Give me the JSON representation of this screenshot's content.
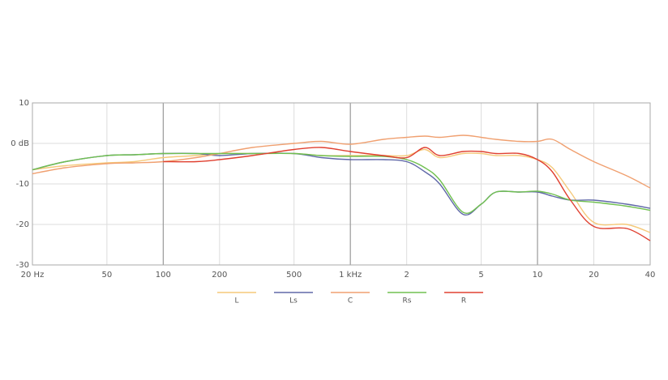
{
  "chart_data": {
    "type": "line",
    "x": [
      20,
      30,
      50,
      70,
      100,
      150,
      200,
      300,
      500,
      700,
      1000,
      1500,
      2000,
      2500,
      3000,
      4000,
      5000,
      6000,
      8000,
      10000,
      12000,
      15000,
      20000,
      30000,
      40000
    ],
    "series": [
      {
        "name": "L",
        "color": "#f5c97a",
        "values": [
          -6.5,
          -5.5,
          -4.8,
          -4.5,
          -3.5,
          -3,
          -2.5,
          -2.5,
          -2.5,
          -3,
          -3,
          -3,
          -3,
          -1.5,
          -3.5,
          -2.5,
          -2.5,
          -3,
          -3,
          -4,
          -6,
          -12,
          -19.5,
          -20,
          -22
        ]
      },
      {
        "name": "Ls",
        "color": "#6068a8",
        "values": [
          -6.5,
          -4.5,
          -3,
          -2.8,
          -2.5,
          -2.5,
          -3,
          -2.5,
          -2.5,
          -3.5,
          -4,
          -4,
          -4.5,
          -7,
          -10,
          -17.5,
          -15,
          -12,
          -12,
          -12,
          -13,
          -14,
          -14,
          -15,
          -16
        ]
      },
      {
        "name": "C",
        "color": "#f0a070",
        "values": [
          -7.5,
          -6,
          -5,
          -4.8,
          -4.5,
          -3.5,
          -2.5,
          -1,
          0,
          0.5,
          -0.2,
          1,
          1.5,
          1.8,
          1.5,
          2,
          1.5,
          1,
          0.5,
          0.5,
          1,
          -1.5,
          -4.5,
          -8,
          -11
        ]
      },
      {
        "name": "Rs",
        "color": "#70c050",
        "values": [
          -6.5,
          -4.5,
          -3,
          -2.8,
          -2.5,
          -2.5,
          -2.5,
          -2.5,
          -2.5,
          -3,
          -3.2,
          -3.2,
          -4,
          -6,
          -9,
          -17,
          -15,
          -12,
          -12,
          -11.8,
          -12.5,
          -14,
          -14.5,
          -15.5,
          -16.5
        ]
      },
      {
        "name": "R",
        "color": "#e04030",
        "values": [
          null,
          null,
          null,
          null,
          -4.5,
          -4.5,
          -4,
          -3,
          -1.5,
          -1,
          -2,
          -3,
          -3.5,
          -1,
          -3,
          -2,
          -2,
          -2.5,
          -2.5,
          -4,
          -7,
          -14,
          -20.5,
          -21,
          -24
        ]
      }
    ],
    "log_x": true,
    "xlim": [
      20,
      40000
    ],
    "xticks": [
      {
        "value": 20,
        "label": "20 Hz"
      },
      50,
      100,
      200,
      500,
      {
        "value": 1000,
        "label": "1 kHz"
      },
      {
        "value": 2000,
        "label": "2"
      },
      {
        "value": 5000,
        "label": "5"
      },
      {
        "value": 10000,
        "label": "10"
      },
      {
        "value": 20000,
        "label": "20"
      },
      {
        "value": 40000,
        "label": "40"
      }
    ],
    "ylim": [
      -30,
      10
    ],
    "yticks": [
      10,
      {
        "value": 0,
        "label": "0 dB"
      },
      -10,
      -20,
      -30
    ],
    "grid": true
  }
}
